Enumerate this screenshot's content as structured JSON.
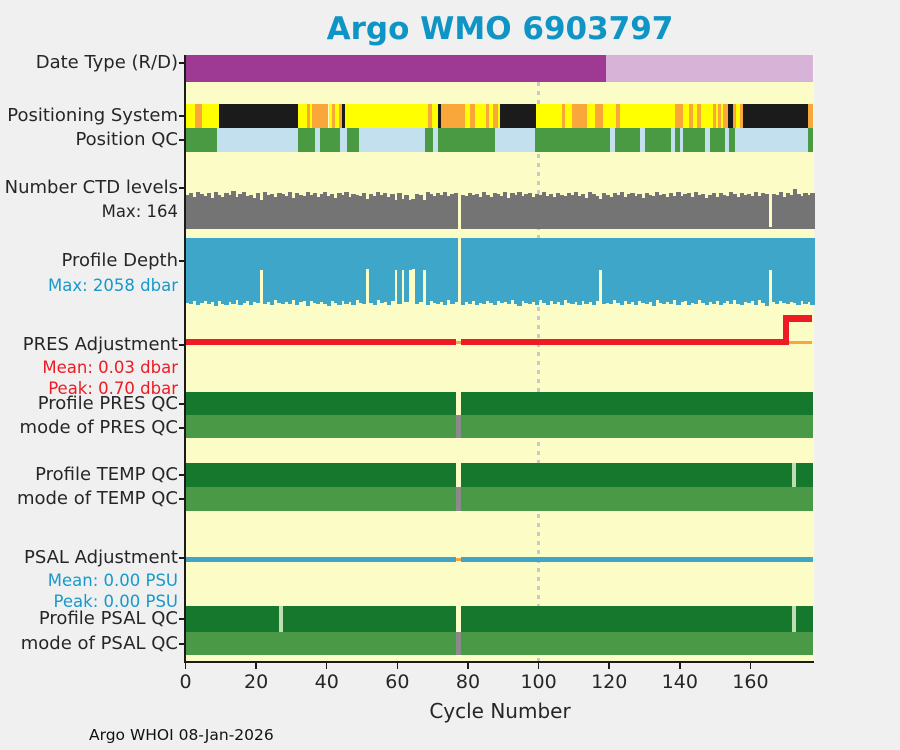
{
  "title": "Argo WMO 6903797",
  "footer": "Argo WHOI 08-Jan-2026",
  "labels": [
    {
      "id": "date-type",
      "text": "Date Type (R/D)",
      "kind": "main",
      "color": "#262626"
    },
    {
      "id": "positioning-system",
      "text": "Positioning System",
      "kind": "main",
      "color": "#262626"
    },
    {
      "id": "position-qc",
      "text": "Position QC",
      "kind": "main",
      "color": "#262626"
    },
    {
      "id": "number-ctd-levels",
      "text": "Number CTD levels",
      "kind": "main",
      "color": "#262626"
    },
    {
      "id": "ctd-max",
      "text": "Max: 164",
      "kind": "sub",
      "color": "#262626"
    },
    {
      "id": "profile-depth",
      "text": "Profile Depth",
      "kind": "main",
      "color": "#262626"
    },
    {
      "id": "depth-max",
      "text": "Max: 2058 dbar",
      "kind": "sub",
      "color": "#1899CB"
    },
    {
      "id": "pres-adjustment",
      "text": "PRES Adjustment",
      "kind": "main",
      "color": "#262626"
    },
    {
      "id": "pres-mean",
      "text": "Mean: 0.03 dbar",
      "kind": "sub",
      "color": "#ED1B24"
    },
    {
      "id": "pres-peak",
      "text": "Peak: 0.70 dbar",
      "kind": "sub",
      "color": "#ED1B24"
    },
    {
      "id": "profile-pres-qc",
      "text": "Profile PRES QC",
      "kind": "main",
      "color": "#262626"
    },
    {
      "id": "mode-pres-qc",
      "text": "mode of PRES QC",
      "kind": "main",
      "color": "#262626"
    },
    {
      "id": "profile-temp-qc",
      "text": "Profile TEMP QC",
      "kind": "main",
      "color": "#262626"
    },
    {
      "id": "mode-temp-qc",
      "text": "mode of TEMP QC",
      "kind": "main",
      "color": "#262626"
    },
    {
      "id": "psal-adjustment",
      "text": "PSAL Adjustment",
      "kind": "main",
      "color": "#262626"
    },
    {
      "id": "psal-mean",
      "text": "Mean: 0.00 PSU",
      "kind": "sub",
      "color": "#1899CB"
    },
    {
      "id": "psal-peak",
      "text": "Peak: 0.00 PSU",
      "kind": "sub",
      "color": "#1899CB"
    },
    {
      "id": "profile-psal-qc",
      "text": "Profile PSAL QC",
      "kind": "main",
      "color": "#262626"
    },
    {
      "id": "mode-psal-qc",
      "text": "mode of PSAL QC",
      "kind": "main",
      "color": "#262626"
    }
  ],
  "chart_data": {
    "type": "multi-row-timeline",
    "xlabel": "Cycle Number",
    "x_ticks": [
      0,
      20,
      40,
      60,
      80,
      100,
      120,
      140,
      160
    ],
    "x_range": [
      0,
      178
    ],
    "reference_line_cycle": 100,
    "missing_profile_cycle": 77,
    "palette": {
      "y": "#FFFF00",
      "o": "#F9A63B",
      "k": "#1B1B1B",
      "g": "#4A9A44",
      "b": "#C2E0ED",
      "dg": "#16782D",
      "mg": "#4A9946",
      "lg": "#BFDDB4",
      "gy": "#8A8A8A",
      "R": "#9E3A94",
      "D": "#D8B3D8",
      "ctd_gray": "#747474",
      "depth_blue": "#3EA6C8",
      "red": "#ED1B24",
      "orange_line": "#F9A63B",
      "psal_blue": "#3EA6C8",
      "cream": "#FCFCC6",
      "figure_bg": "#F0F0F0",
      "title": "#0E95C6",
      "dotted": "#C9C9CD"
    },
    "rows": [
      {
        "id": "date-type-band",
        "kind": "segments",
        "band": "date_type",
        "segments": [
          [
            0,
            119,
            "R"
          ],
          [
            119,
            177.8,
            "D"
          ]
        ]
      },
      {
        "id": "positioning-band",
        "kind": "segments",
        "band": "positioning",
        "segments": [
          [
            0,
            2.6,
            "y"
          ],
          [
            2.6,
            4.7,
            "o"
          ],
          [
            4.7,
            9.4,
            "y"
          ],
          [
            9.4,
            32,
            "k"
          ],
          [
            32,
            34.4,
            "y"
          ],
          [
            34.4,
            35.3,
            "o"
          ],
          [
            35.3,
            35.8,
            "y"
          ],
          [
            35.8,
            40.5,
            "o"
          ],
          [
            40.5,
            41.4,
            "y"
          ],
          [
            41.4,
            42.4,
            "o"
          ],
          [
            42.4,
            43.5,
            "y"
          ],
          [
            43.5,
            44.4,
            "o"
          ],
          [
            44.4,
            45.2,
            "k"
          ],
          [
            45.2,
            68.7,
            "y"
          ],
          [
            68.7,
            69.7,
            "o"
          ],
          [
            69.7,
            71.6,
            "y"
          ],
          [
            71.6,
            72.3,
            "k"
          ],
          [
            72.3,
            79.1,
            "o"
          ],
          [
            79.1,
            80.5,
            "y"
          ],
          [
            80.5,
            82,
            "o"
          ],
          [
            82,
            85.2,
            "y"
          ],
          [
            85.2,
            86,
            "o"
          ],
          [
            86,
            87.1,
            "y"
          ],
          [
            87.1,
            88.5,
            "o"
          ],
          [
            88.5,
            89,
            "y"
          ],
          [
            89,
            99.4,
            "k"
          ],
          [
            99.4,
            106.5,
            "y"
          ],
          [
            106.5,
            107.5,
            "o"
          ],
          [
            107.5,
            109.4,
            "y"
          ],
          [
            109.4,
            113.7,
            "o"
          ],
          [
            113.7,
            116,
            "y"
          ],
          [
            116,
            118.3,
            "o"
          ],
          [
            118.3,
            122,
            "y"
          ],
          [
            122,
            123,
            "o"
          ],
          [
            123,
            138.6,
            "y"
          ],
          [
            138.6,
            141,
            "o"
          ],
          [
            141,
            142.7,
            "y"
          ],
          [
            142.7,
            143.7,
            "o"
          ],
          [
            143.7,
            145,
            "y"
          ],
          [
            145,
            146,
            "o"
          ],
          [
            146,
            149.3,
            "y"
          ],
          [
            149.3,
            150.3,
            "o"
          ],
          [
            150.3,
            150.8,
            "y"
          ],
          [
            150.8,
            151.8,
            "o"
          ],
          [
            151.8,
            152.3,
            "y"
          ],
          [
            152.3,
            153.7,
            "o"
          ],
          [
            153.7,
            155,
            "k"
          ],
          [
            155,
            156,
            "o"
          ],
          [
            156,
            157,
            "y"
          ],
          [
            157,
            157.8,
            "o"
          ],
          [
            157.8,
            176.2,
            "k"
          ],
          [
            176.2,
            177.8,
            "o"
          ]
        ]
      },
      {
        "id": "position-qc-band",
        "kind": "segments",
        "band": "position_qc",
        "segments": [
          [
            0,
            8.9,
            "g"
          ],
          [
            8.9,
            32,
            "b"
          ],
          [
            32,
            36.7,
            "g"
          ],
          [
            36.7,
            38.1,
            "b"
          ],
          [
            38.1,
            43.8,
            "g"
          ],
          [
            43.8,
            45.7,
            "b"
          ],
          [
            45.7,
            49,
            "g"
          ],
          [
            49,
            67.8,
            "b"
          ],
          [
            67.8,
            70.2,
            "g"
          ],
          [
            70.2,
            71.6,
            "b"
          ],
          [
            71.6,
            87.6,
            "g"
          ],
          [
            87.6,
            98.9,
            "b"
          ],
          [
            98.9,
            120.2,
            "g"
          ],
          [
            120.2,
            121.6,
            "b"
          ],
          [
            121.6,
            128.7,
            "g"
          ],
          [
            128.7,
            130,
            "b"
          ],
          [
            130,
            137.6,
            "g"
          ],
          [
            137.6,
            138.6,
            "b"
          ],
          [
            138.6,
            140,
            "g"
          ],
          [
            140,
            141,
            "b"
          ],
          [
            141,
            147.1,
            "g"
          ],
          [
            147.1,
            148.5,
            "b"
          ],
          [
            148.5,
            152.8,
            "g"
          ],
          [
            152.8,
            153.8,
            "b"
          ],
          [
            153.8,
            155.7,
            "g"
          ],
          [
            155.7,
            176.2,
            "b"
          ],
          [
            176.2,
            177.8,
            "g"
          ]
        ]
      },
      {
        "id": "ctd-levels-bars",
        "kind": "bars",
        "band": "ctd",
        "color_key": "ctd_gray",
        "max_label": 164,
        "values": [
          138,
          146,
          130,
          151,
          142,
          135,
          148,
          128,
          152,
          140,
          133,
          147,
          139,
          155,
          131,
          144,
          150,
          136,
          141,
          129,
          148,
          120,
          152,
          138,
          145,
          132,
          149,
          143,
          137,
          151,
          128,
          146,
          140,
          134,
          153,
          139,
          147,
          131,
          144,
          150,
          136,
          142,
          129,
          148,
          138,
          152,
          133,
          145,
          141,
          137,
          149,
          122,
          143,
          135,
          151,
          139,
          146,
          130,
          144,
          118,
          148,
          121,
          140,
          119,
          123,
          145,
          138,
          120,
          150,
          142,
          134,
          147,
          139,
          152,
          136,
          143,
          148,
          0,
          141,
          135,
          149,
          138,
          145,
          131,
          152,
          140,
          133,
          147,
          144,
          137,
          150,
          129,
          146,
          139,
          153,
          135,
          142,
          148,
          132,
          145,
          138,
          151,
          136,
          143,
          130,
          149,
          141,
          134,
          147,
          139,
          152,
          137,
          144,
          128,
          150,
          142,
          135,
          125,
          148,
          140,
          133,
          146,
          138,
          151,
          131,
          145,
          149,
          136,
          143,
          129,
          147,
          141,
          134,
          152,
          139,
          144,
          130,
          148,
          137,
          151,
          135,
          142,
          146,
          132,
          150,
          138,
          145,
          128,
          141,
          147,
          133,
          149,
          140,
          136,
          152,
          143,
          131,
          146,
          139,
          144,
          137,
          150,
          134,
          148,
          142,
          8,
          145,
          138,
          151,
          132,
          147,
          140,
          164,
          144,
          136,
          149,
          141,
          146
        ]
      },
      {
        "id": "profile-depth-bars",
        "kind": "bars",
        "band": "depth",
        "color_key": "depth_blue",
        "max_label": 2058,
        "values": [
          1960,
          2005,
          1910,
          2030,
          1975,
          1895,
          2010,
          1940,
          2045,
          1900,
          1985,
          2020,
          1930,
          1995,
          1875,
          2040,
          1960,
          1905,
          2015,
          1945,
          1980,
          960,
          2000,
          1925,
          2035,
          1890,
          1970,
          2010,
          1935,
          1990,
          1880,
          2025,
          1950,
          1915,
          2045,
          1895,
          1975,
          2005,
          1930,
          1985,
          2058,
          1920,
          1965,
          2030,
          1900,
          1995,
          1940,
          2015,
          1885,
          1970,
          2000,
          950,
          1955,
          2020,
          1890,
          1980,
          1935,
          2040,
          1910,
          965,
          1990,
          955,
          1945,
          970,
          945,
          2010,
          1925,
          958,
          2035,
          1905,
          1975,
          2000,
          1940,
          2025,
          1885,
          1995,
          1950,
          0,
          2015,
          1930,
          1985,
          1895,
          2040,
          1960,
          2005,
          1915,
          1970,
          2030,
          1900,
          1980,
          1945,
          2010,
          1875,
          1990,
          2045,
          1920,
          1965,
          2000,
          1935,
          2020,
          1890,
          1975,
          2035,
          1910,
          1995,
          1950,
          2015,
          1880,
          1970,
          2005,
          1940,
          2025,
          1900,
          1985,
          1930,
          2040,
          1905,
          975,
          1995,
          1955,
          2010,
          1885,
          1975,
          2030,
          1915,
          1990,
          1945,
          2020,
          1895,
          1980,
          2000,
          1925,
          2045,
          1870,
          1965,
          2010,
          1935,
          1995,
          1880,
          2025,
          1950,
          1915,
          2035,
          1960,
          2005,
          1890,
          1970,
          2015,
          1930,
          1985,
          1900,
          2040,
          1955,
          1920,
          2000,
          1875,
          1990,
          2030,
          1940,
          1975,
          1910,
          2020,
          1885,
          1965,
          2045,
          980,
          1935,
          2000,
          1895,
          1970,
          2010,
          1925,
          1980,
          2035,
          1905,
          1990,
          1945,
          2015
        ]
      },
      {
        "id": "pres-qc-band",
        "kind": "segments",
        "band": "pres_qc",
        "segments": [
          [
            0,
            76.6,
            "dg"
          ],
          [
            78,
            177.8,
            "dg"
          ]
        ]
      },
      {
        "id": "pres-mode-band",
        "kind": "segments",
        "band": "pres_mode",
        "segments": [
          [
            0,
            76.6,
            "mg"
          ],
          [
            76.6,
            78,
            "gy"
          ],
          [
            78,
            177.8,
            "mg"
          ]
        ]
      },
      {
        "id": "temp-qc-band",
        "kind": "segments",
        "band": "temp_qc",
        "segments": [
          [
            0,
            76.6,
            "dg"
          ],
          [
            78,
            171.7,
            "dg"
          ],
          [
            171.7,
            172.9,
            "lg"
          ],
          [
            172.9,
            177.8,
            "dg"
          ]
        ]
      },
      {
        "id": "temp-mode-band",
        "kind": "segments",
        "band": "temp_mode",
        "segments": [
          [
            0,
            76.6,
            "mg"
          ],
          [
            76.6,
            78,
            "gy"
          ],
          [
            78,
            177.8,
            "mg"
          ]
        ]
      },
      {
        "id": "psal-qc-band",
        "kind": "segments",
        "band": "psal_qc",
        "segments": [
          [
            0,
            26.5,
            "dg"
          ],
          [
            26.5,
            27.7,
            "lg"
          ],
          [
            27.7,
            76.6,
            "dg"
          ],
          [
            78,
            171.7,
            "dg"
          ],
          [
            171.7,
            172.9,
            "lg"
          ],
          [
            172.9,
            177.8,
            "dg"
          ]
        ]
      },
      {
        "id": "psal-mode-band",
        "kind": "segments",
        "band": "psal_mode",
        "segments": [
          [
            0,
            76.6,
            "mg"
          ],
          [
            76.6,
            78,
            "gy"
          ],
          [
            78,
            177.8,
            "mg"
          ]
        ]
      }
    ],
    "pres_adjustment_line": {
      "mean_dbar": 0.03,
      "peak_dbar": 0.7,
      "baseline_value": 0.03,
      "gap": [
        76.6,
        78
      ],
      "step_start_cycle": 169.3,
      "step_top_value": 0.7,
      "end_cycle": 177.3,
      "color_key": "red",
      "raw_color_key": "orange_line"
    },
    "psal_adjustment_line": {
      "mean_psu": 0.0,
      "peak_psu": 0.0,
      "value": 0.0,
      "gap": [
        76.6,
        78
      ],
      "end_cycle": 177.8,
      "color_key": "psal_blue",
      "raw_color_key": "orange_line"
    }
  }
}
